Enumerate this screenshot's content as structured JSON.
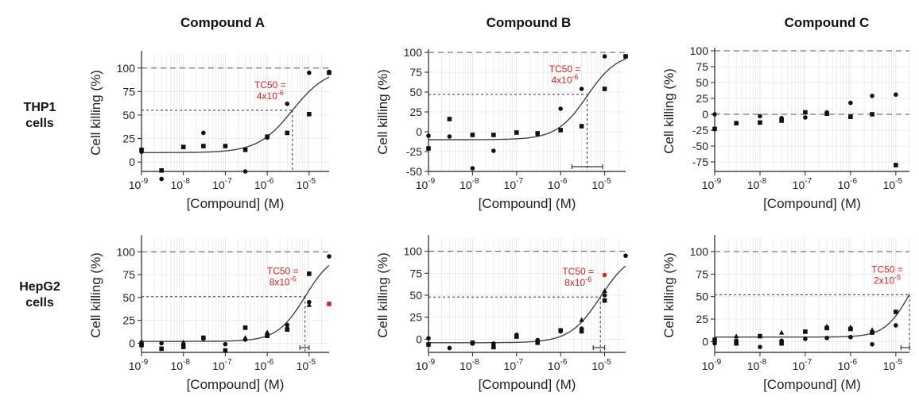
{
  "columns": [
    "Compound A",
    "Compound B",
    "Compound C"
  ],
  "rows": [
    [
      "THP1",
      "cells"
    ],
    [
      "HepG2",
      "cells"
    ]
  ],
  "colors": {
    "curve": "#444444",
    "points": "#111111",
    "highlight": "#e02020",
    "grid": "#e6e6e6"
  },
  "chart_data": [
    {
      "type": "scatter",
      "panel": "Compound A / THP1 cells",
      "xlabel": "[Compound] (M)",
      "ylabel": "Cell killing (%)",
      "xscale": "log",
      "xlim": [
        1e-09,
        3e-05
      ],
      "ylim": [
        -10,
        115
      ],
      "yticks": [
        0,
        25,
        50,
        75,
        100
      ],
      "xticks": [
        {
          "v": 1e-09,
          "m": "10",
          "e": "-9"
        },
        {
          "v": 1e-08,
          "m": "10",
          "e": "-8"
        },
        {
          "v": 1e-07,
          "m": "10",
          "e": "-7"
        },
        {
          "v": 1e-06,
          "m": "10",
          "e": "-6"
        },
        {
          "v": 1e-05,
          "m": "10",
          "e": "-5"
        }
      ],
      "ref_lines": [
        100
      ],
      "tc50": {
        "x": 4e-06,
        "y": 55,
        "label_top": "TC50 =",
        "label_m": "4x10",
        "label_e": "-6"
      },
      "curve": {
        "bottom": 10,
        "top": 100,
        "ec50": 4e-06,
        "hill": 1.05
      },
      "series": [
        {
          "marker": "circle",
          "points": [
            [
              1e-09,
              11
            ],
            [
              3e-09,
              -18
            ],
            [
              3e-08,
              31
            ],
            [
              3e-07,
              -10
            ],
            [
              1e-06,
              26
            ],
            [
              3e-06,
              62
            ],
            [
              1e-05,
              95
            ],
            [
              3e-05,
              96
            ]
          ]
        },
        {
          "marker": "square",
          "points": [
            [
              1e-09,
              13
            ],
            [
              3e-09,
              -9
            ],
            [
              1e-08,
              16
            ],
            [
              3e-08,
              17
            ],
            [
              1e-07,
              17
            ],
            [
              3e-07,
              13
            ],
            [
              1e-06,
              27
            ],
            [
              3e-06,
              31
            ],
            [
              1e-05,
              51
            ],
            [
              3e-05,
              95
            ]
          ]
        }
      ]
    },
    {
      "type": "scatter",
      "panel": "Compound B / THP1 cells",
      "xlabel": "[Compound] (M)",
      "ylabel": "Cell killing (%)",
      "xscale": "log",
      "xlim": [
        1e-09,
        3e-05
      ],
      "ylim": [
        -50,
        100
      ],
      "yticks": [
        -50,
        -25,
        0,
        25,
        50,
        75,
        100
      ],
      "xticks": [
        {
          "v": 1e-09,
          "m": "10",
          "e": "-9"
        },
        {
          "v": 1e-08,
          "m": "10",
          "e": "-8"
        },
        {
          "v": 1e-07,
          "m": "10",
          "e": "-7"
        },
        {
          "v": 1e-06,
          "m": "10",
          "e": "-6"
        },
        {
          "v": 1e-05,
          "m": "10",
          "e": "-5"
        }
      ],
      "ref_lines": [
        100
      ],
      "tc50": {
        "x": 4e-06,
        "y": 47,
        "label_top": "TC50 =",
        "label_m": "4x10",
        "label_e": "-6",
        "errbar": [
          1.8e-06,
          9e-06
        ]
      },
      "curve": {
        "bottom": -10,
        "top": 100,
        "ec50": 4e-06,
        "hill": 1.25
      },
      "series": [
        {
          "marker": "circle",
          "points": [
            [
              1e-09,
              -5
            ],
            [
              3e-09,
              -6
            ],
            [
              1e-08,
              -46
            ],
            [
              3e-08,
              -24
            ],
            [
              3e-07,
              -3
            ],
            [
              1e-06,
              29
            ],
            [
              3e-06,
              54
            ],
            [
              1e-05,
              95
            ],
            [
              3e-05,
              95
            ]
          ]
        },
        {
          "marker": "square",
          "points": [
            [
              1e-09,
              -21
            ],
            [
              3e-09,
              16
            ],
            [
              1e-08,
              -4
            ],
            [
              3e-08,
              -4
            ],
            [
              1e-07,
              -1
            ],
            [
              3e-07,
              -2
            ],
            [
              1e-06,
              2
            ],
            [
              3e-06,
              7
            ],
            [
              1e-05,
              54
            ],
            [
              3e-05,
              95
            ]
          ]
        }
      ]
    },
    {
      "type": "scatter",
      "panel": "Compound C / THP1 cells",
      "xlabel": "[Compound] (M)",
      "ylabel": "Cell killing (%)",
      "xscale": "log",
      "xlim": [
        1e-09,
        2e-05
      ],
      "ylim": [
        -90,
        100
      ],
      "yticks": [
        -75,
        -50,
        -25,
        0,
        25,
        50,
        75,
        100
      ],
      "xticks": [
        {
          "v": 1e-09,
          "m": "10",
          "e": "-9"
        },
        {
          "v": 1e-08,
          "m": "10",
          "e": "-8"
        },
        {
          "v": 1e-07,
          "m": "10",
          "e": "-7"
        },
        {
          "v": 1e-06,
          "m": "10",
          "e": "-6"
        },
        {
          "v": 1e-05,
          "m": "10",
          "e": "-5"
        }
      ],
      "ref_lines": [
        100,
        0
      ],
      "series": [
        {
          "marker": "circle",
          "points": [
            [
              1e-09,
              0
            ],
            [
              1e-08,
              -3
            ],
            [
              3e-08,
              -6
            ],
            [
              1e-07,
              -5
            ],
            [
              3e-07,
              3
            ],
            [
              1e-06,
              18
            ],
            [
              3e-06,
              29
            ],
            [
              1e-05,
              31
            ]
          ]
        },
        {
          "marker": "square",
          "points": [
            [
              1e-09,
              -23
            ],
            [
              3e-09,
              -14
            ],
            [
              1e-08,
              -13
            ],
            [
              3e-08,
              -10
            ],
            [
              1e-07,
              3
            ],
            [
              3e-07,
              1
            ],
            [
              1e-06,
              -4
            ],
            [
              3e-06,
              0
            ],
            [
              1e-05,
              -80
            ]
          ]
        }
      ]
    },
    {
      "type": "scatter",
      "panel": "Compound A / HepG2 cells",
      "xlabel": "[Compound] (M)",
      "ylabel": "Cell killing (%)",
      "xscale": "log",
      "xlim": [
        1e-09,
        3e-05
      ],
      "ylim": [
        -10,
        115
      ],
      "yticks": [
        0,
        25,
        50,
        75,
        100
      ],
      "xticks": [
        {
          "v": 1e-09,
          "m": "10",
          "e": "-9"
        },
        {
          "v": 1e-08,
          "m": "10",
          "e": "-8"
        },
        {
          "v": 1e-07,
          "m": "10",
          "e": "-7"
        },
        {
          "v": 1e-06,
          "m": "10",
          "e": "-6"
        },
        {
          "v": 1e-05,
          "m": "10",
          "e": "-5"
        }
      ],
      "ref_lines": [
        100
      ],
      "tc50": {
        "x": 8e-06,
        "y": 51,
        "label_top": "TC50 =",
        "label_m": "8x10",
        "label_e": "-6",
        "errbar": [
          6e-06,
          1e-05
        ]
      },
      "curve": {
        "bottom": 2,
        "top": 100,
        "ec50": 8e-06,
        "hill": 1.3
      },
      "series": [
        {
          "marker": "circle",
          "points": [
            [
              1e-09,
              1
            ],
            [
              3e-09,
              0
            ],
            [
              1e-08,
              -1
            ],
            [
              3e-08,
              5
            ],
            [
              1e-07,
              -1
            ],
            [
              3e-07,
              4
            ],
            [
              1e-06,
              10
            ],
            [
              3e-06,
              20
            ],
            [
              1e-05,
              45
            ],
            [
              3e-05,
              95
            ]
          ]
        },
        {
          "marker": "square",
          "points": [
            [
              1e-09,
              -2
            ],
            [
              3e-09,
              -6
            ],
            [
              1e-08,
              -4
            ],
            [
              3e-08,
              6
            ],
            [
              1e-07,
              -8
            ],
            [
              3e-07,
              17
            ],
            [
              1e-06,
              8
            ],
            [
              3e-06,
              15
            ],
            [
              1e-05,
              76
            ]
          ]
        },
        {
          "marker": "triangle",
          "points": [
            [
              1e-09,
              0
            ],
            [
              1e-08,
              1
            ],
            [
              3e-07,
              6
            ],
            [
              1e-06,
              12
            ],
            [
              3e-06,
              18
            ],
            [
              1e-05,
              42
            ]
          ]
        },
        {
          "marker": "square",
          "color": "#e02020",
          "points": [
            [
              3e-05,
              43
            ]
          ]
        }
      ]
    },
    {
      "type": "scatter",
      "panel": "Compound B / HepG2 cells",
      "xlabel": "[Compound] (M)",
      "ylabel": "Cell killing (%)",
      "xscale": "log",
      "xlim": [
        1e-09,
        3e-05
      ],
      "ylim": [
        -15,
        115
      ],
      "yticks": [
        0,
        25,
        50,
        75,
        100
      ],
      "xticks": [
        {
          "v": 1e-09,
          "m": "10",
          "e": "-9"
        },
        {
          "v": 1e-08,
          "m": "10",
          "e": "-8"
        },
        {
          "v": 1e-07,
          "m": "10",
          "e": "-7"
        },
        {
          "v": 1e-06,
          "m": "10",
          "e": "-6"
        },
        {
          "v": 1e-05,
          "m": "10",
          "e": "-5"
        }
      ],
      "ref_lines": [
        100
      ],
      "tc50": {
        "x": 8e-06,
        "y": 48,
        "label_top": "TC50 =",
        "label_m": "8x10",
        "label_e": "-6",
        "errbar": [
          5.5e-06,
          1e-05
        ]
      },
      "curve": {
        "bottom": -4,
        "top": 100,
        "ec50": 8e-06,
        "hill": 1.25
      },
      "series": [
        {
          "marker": "circle",
          "points": [
            [
              1e-09,
              1
            ],
            [
              3e-09,
              -10
            ],
            [
              1e-08,
              -5
            ],
            [
              3e-08,
              -5
            ],
            [
              1e-07,
              5
            ],
            [
              3e-07,
              -1
            ],
            [
              1e-06,
              9
            ],
            [
              3e-06,
              12
            ],
            [
              1e-05,
              50
            ],
            [
              3e-05,
              95
            ]
          ]
        },
        {
          "marker": "square",
          "points": [
            [
              1e-09,
              -6
            ],
            [
              1e-08,
              -4
            ],
            [
              3e-08,
              -9
            ],
            [
              1e-07,
              3
            ],
            [
              3e-07,
              -4
            ],
            [
              1e-06,
              10
            ],
            [
              3e-06,
              9
            ],
            [
              1e-05,
              44
            ]
          ]
        },
        {
          "marker": "triangle",
          "points": [
            [
              3e-06,
              22
            ],
            [
              1e-05,
              55
            ]
          ]
        },
        {
          "marker": "circle",
          "color": "#e02020",
          "points": [
            [
              1e-05,
              73
            ]
          ]
        }
      ]
    },
    {
      "type": "scatter",
      "panel": "Compound C / HepG2 cells",
      "xlabel": "[Compound] (M)",
      "ylabel": "Cell killing (%)",
      "xscale": "log",
      "xlim": [
        1e-09,
        2e-05
      ],
      "ylim": [
        -12,
        115
      ],
      "yticks": [
        0,
        25,
        50,
        75,
        100
      ],
      "xticks": [
        {
          "v": 1e-09,
          "m": "10",
          "e": "-9"
        },
        {
          "v": 1e-08,
          "m": "10",
          "e": "-8"
        },
        {
          "v": 1e-07,
          "m": "10",
          "e": "-7"
        },
        {
          "v": 1e-06,
          "m": "10",
          "e": "-6"
        },
        {
          "v": 1e-05,
          "m": "10",
          "e": "-5"
        }
      ],
      "ref_lines": [
        100
      ],
      "tc50": {
        "x": 2e-05,
        "y": 52,
        "label_top": "TC50 =",
        "label_m": "2x10",
        "label_e": "-5",
        "errbar": [
          1.3e-05,
          2e-05
        ]
      },
      "curve": {
        "bottom": 5,
        "top": 100,
        "ec50": 2e-05,
        "hill": 1.6
      },
      "series": [
        {
          "marker": "circle",
          "points": [
            [
              1e-09,
              -2
            ],
            [
              3e-09,
              1
            ],
            [
              1e-08,
              -6
            ],
            [
              3e-08,
              1
            ],
            [
              1e-07,
              3
            ],
            [
              3e-07,
              4
            ],
            [
              1e-06,
              5
            ],
            [
              3e-06,
              -3
            ],
            [
              1e-05,
              18
            ]
          ]
        },
        {
          "marker": "square",
          "points": [
            [
              1e-09,
              2
            ],
            [
              3e-09,
              -2
            ],
            [
              1e-08,
              6
            ],
            [
              3e-08,
              -2
            ],
            [
              1e-07,
              11
            ],
            [
              3e-07,
              15
            ],
            [
              1e-06,
              14
            ],
            [
              3e-06,
              10
            ],
            [
              1e-05,
              33
            ]
          ]
        },
        {
          "marker": "triangle",
          "points": [
            [
              3e-09,
              6
            ],
            [
              3e-08,
              10
            ],
            [
              3e-07,
              17
            ],
            [
              1e-06,
              16
            ],
            [
              3e-06,
              13
            ]
          ]
        }
      ]
    }
  ]
}
